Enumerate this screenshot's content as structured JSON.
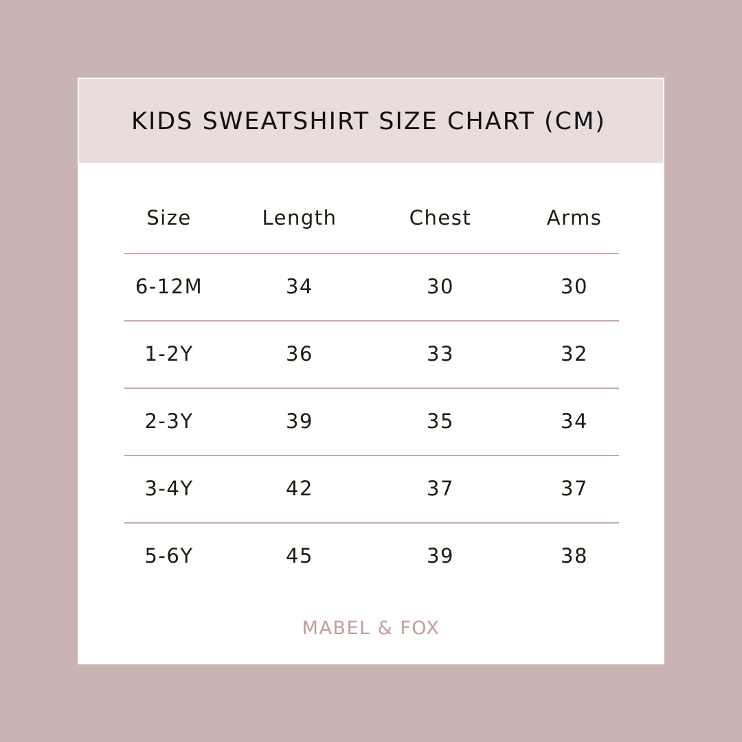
{
  "title": "KIDS SWEATSHIRT SIZE CHART (CM)",
  "table": {
    "columns": [
      "Size",
      "Length",
      "Chest",
      "Arms"
    ],
    "rows": [
      [
        "6-12M",
        "34",
        "30",
        "30"
      ],
      [
        "1-2Y",
        "36",
        "33",
        "32"
      ],
      [
        "2-3Y",
        "39",
        "35",
        "34"
      ],
      [
        "3-4Y",
        "42",
        "37",
        "37"
      ],
      [
        "5-6Y",
        "45",
        "39",
        "38"
      ]
    ]
  },
  "brand": "MABEL & FOX",
  "colors": {
    "background": "#cab3b3",
    "title_band": "#e8dcdc",
    "divider": "#c8a8a8",
    "brand": "#c39c9c"
  }
}
